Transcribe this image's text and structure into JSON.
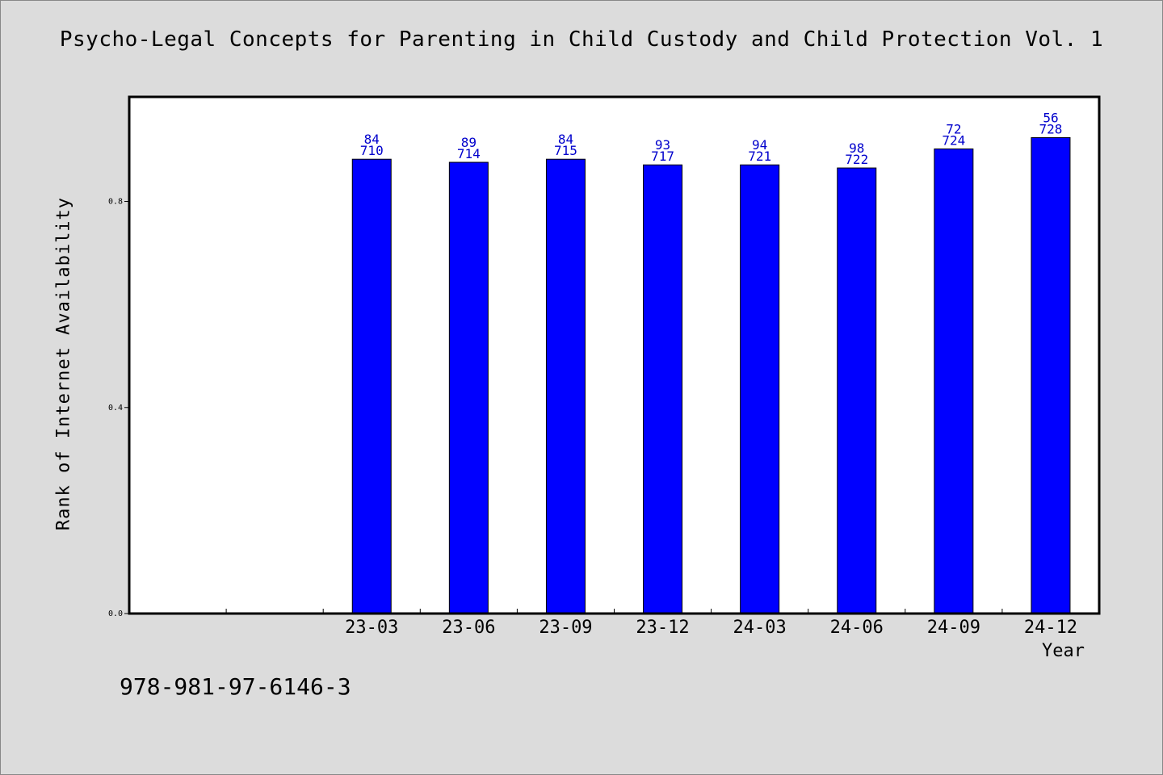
{
  "chart_data": {
    "type": "bar",
    "title": "Psycho-Legal Concepts for Parenting in Child Custody and Child Protection Vol. 1",
    "xlabel": "Year",
    "ylabel": "Rank of Internet Availability",
    "categories": [
      "23-03",
      "23-06",
      "23-09",
      "23-12",
      "24-03",
      "24-06",
      "24-09",
      "24-12"
    ],
    "values": [
      0.882,
      0.876,
      0.882,
      0.871,
      0.871,
      0.865,
      0.902,
      0.924
    ],
    "label_top": [
      "84",
      "89",
      "84",
      "93",
      "94",
      "98",
      "72",
      "56"
    ],
    "label_bottom": [
      "710",
      "714",
      "715",
      "717",
      "721",
      "722",
      "724",
      "728"
    ],
    "ylim": [
      0,
      1.003
    ],
    "yticks": [
      0.0,
      0.4,
      0.8
    ],
    "ytick_labels": [
      "0.0",
      "0.4",
      "0.8"
    ],
    "empty_leading_slots": 2,
    "bar_color": "#0000ff",
    "label_color": "#0000cc",
    "grid": false,
    "legend": "none"
  },
  "footer": {
    "isbn": "978-981-97-6146-3"
  }
}
